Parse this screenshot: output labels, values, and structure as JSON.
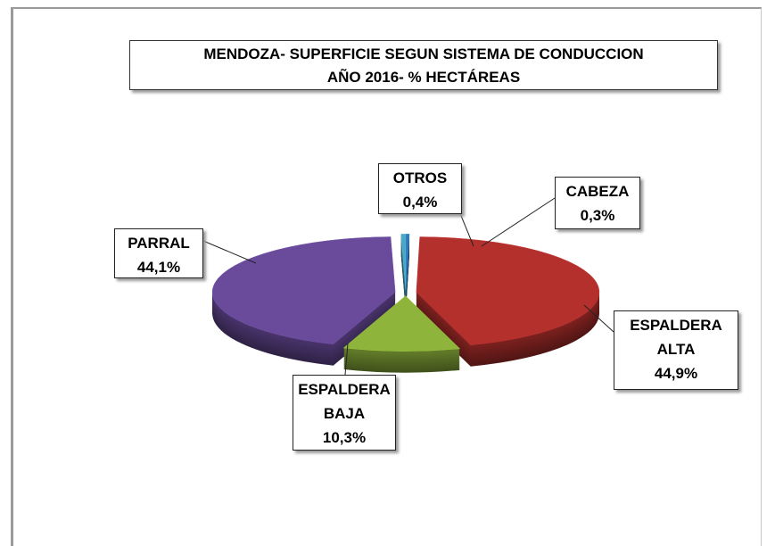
{
  "chart_data": {
    "type": "pie",
    "title": "MENDOZA- SUPERFICIE SEGUN SISTEMA DE CONDUCCION",
    "subtitle": "AÑO 2016- % HECTÁREAS",
    "categories": [
      "CABEZA",
      "ESPALDERA ALTA",
      "ESPALDERA BAJA",
      "PARRAL",
      "OTROS"
    ],
    "values": [
      0.3,
      44.9,
      10.3,
      44.1,
      0.4
    ],
    "value_labels": [
      "0,3%",
      "44,9%",
      "10,3%",
      "44,1%",
      "0,4%"
    ],
    "colors": [
      "#2f78bd",
      "#b3302d",
      "#8fb43c",
      "#6a4b9b",
      "#4aa8c4"
    ],
    "start_angle": 0,
    "exploded": true
  }
}
